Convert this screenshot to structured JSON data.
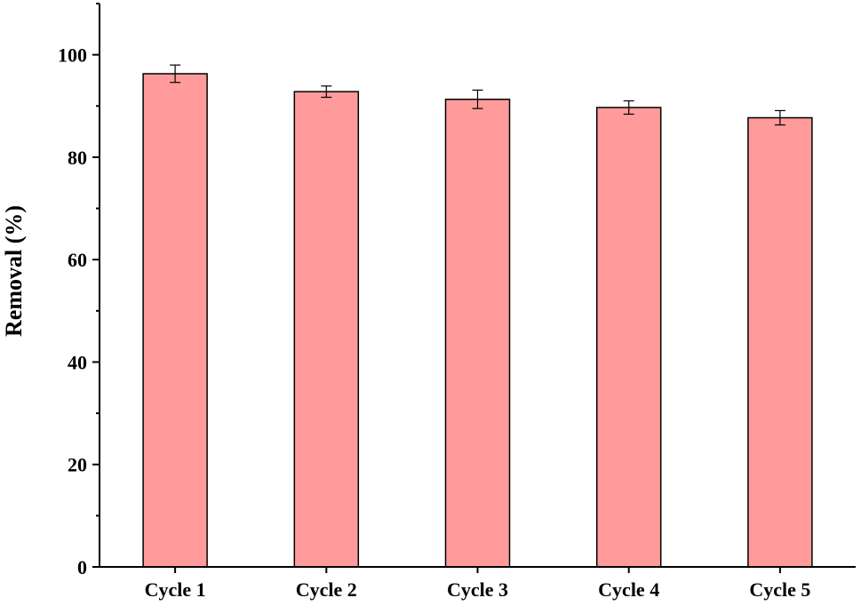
{
  "chart_data": {
    "type": "bar",
    "title": "",
    "xlabel": "",
    "ylabel": "Removal (%)",
    "categories": [
      "Cycle 1",
      "Cycle 2",
      "Cycle 3",
      "Cycle 4",
      "Cycle 5"
    ],
    "values": [
      96.3,
      92.8,
      91.3,
      89.7,
      87.7
    ],
    "error": [
      1.7,
      1.1,
      1.8,
      1.3,
      1.4
    ],
    "ylim": [
      0,
      110
    ],
    "yticks": [
      0,
      20,
      40,
      60,
      80,
      100
    ],
    "ytick_labels": [
      "0",
      "20",
      "40",
      "60",
      "80",
      "100"
    ],
    "y_minor_step": 10,
    "grid": false,
    "legend": "none",
    "colors": {
      "bar_fill": "#ff9b9b",
      "bar_stroke": "#000000",
      "axis": "#000000"
    }
  }
}
